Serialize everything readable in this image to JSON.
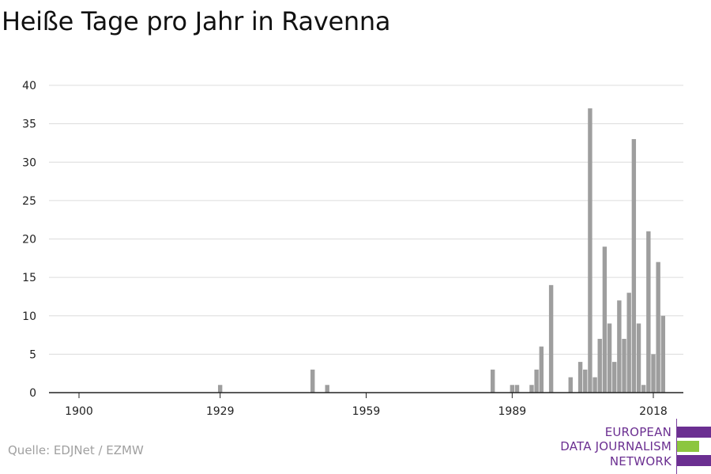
{
  "title": "Heiße Tage pro Jahr in Ravenna",
  "source": "Quelle: EDJNet / EZMW",
  "logo": {
    "line1": "EUROPEAN",
    "line2": "DATA JOURNALISM",
    "line3": "NETWORK",
    "purple": "#6b2f91",
    "green": "#8cc63f"
  },
  "colors": {
    "bar": "#9e9e9e",
    "grid": "#dcdcdc",
    "axis": "#222222"
  },
  "chart_data": {
    "type": "bar",
    "title": "Heiße Tage pro Jahr in Ravenna",
    "xlabel": "",
    "ylabel": "",
    "xlim": [
      1900,
      2018
    ],
    "ylim": [
      0,
      40
    ],
    "x_ticks": [
      1900,
      1929,
      1959,
      1989,
      2018
    ],
    "y_ticks": [
      0,
      5,
      10,
      15,
      20,
      25,
      30,
      35,
      40
    ],
    "grid": true,
    "x": [
      1929,
      1948,
      1951,
      1985,
      1989,
      1990,
      1993,
      1994,
      1995,
      1997,
      2001,
      2003,
      2004,
      2005,
      2006,
      2007,
      2008,
      2009,
      2010,
      2011,
      2012,
      2013,
      2014,
      2015,
      2016,
      2017,
      2018
    ],
    "values": [
      1,
      3,
      1,
      3,
      1,
      1,
      1,
      3,
      6,
      14,
      2,
      4,
      3,
      37,
      2,
      7,
      19,
      9,
      4,
      12,
      7,
      13,
      33,
      9,
      1,
      21,
      5
    ],
    "extra_points": [
      [
        2019,
        17
      ],
      [
        2020,
        10
      ]
    ]
  }
}
